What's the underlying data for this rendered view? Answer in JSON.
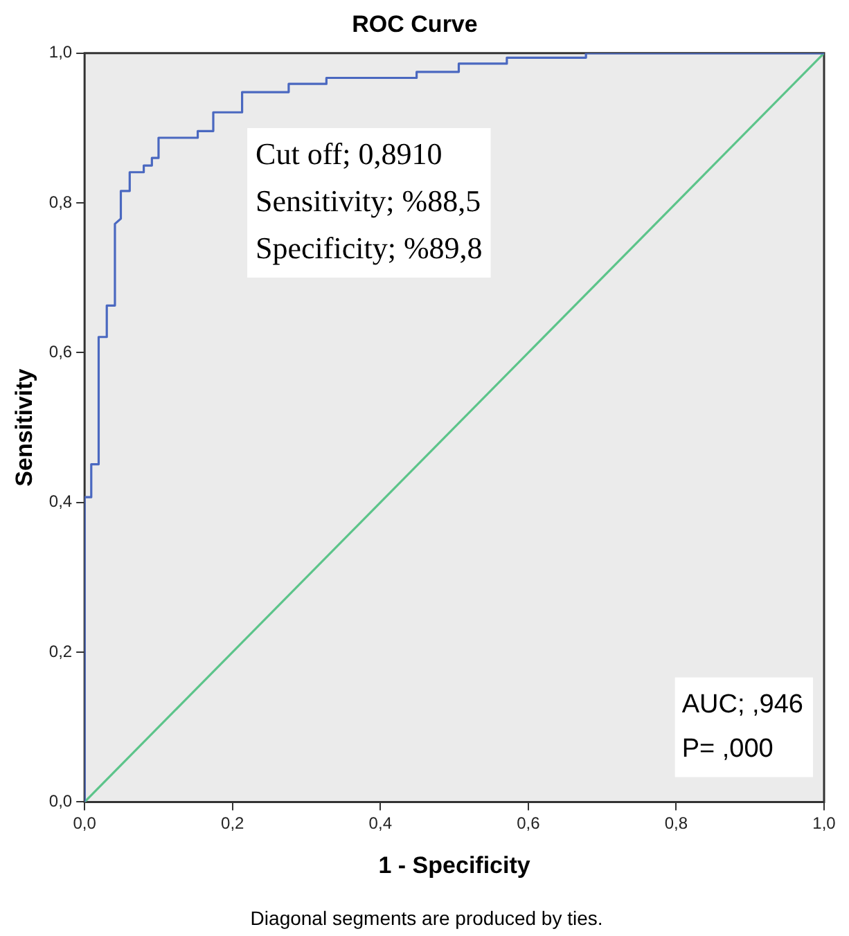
{
  "chart_data": {
    "type": "line",
    "title": "ROC Curve",
    "xlabel": "1 - Specificity",
    "ylabel": "Sensitivity",
    "xlim": [
      0,
      1
    ],
    "ylim": [
      0,
      1
    ],
    "xticks": [
      {
        "value": 0,
        "label": "0,0"
      },
      {
        "value": 0.2,
        "label": "0,2"
      },
      {
        "value": 0.4,
        "label": "0,4"
      },
      {
        "value": 0.6,
        "label": "0,6"
      },
      {
        "value": 0.8,
        "label": "0,8"
      },
      {
        "value": 1,
        "label": "1,0"
      }
    ],
    "yticks": [
      {
        "value": 0,
        "label": "0,0"
      },
      {
        "value": 0.2,
        "label": "0,2"
      },
      {
        "value": 0.4,
        "label": "0,4"
      },
      {
        "value": 0.6,
        "label": "0,6"
      },
      {
        "value": 0.8,
        "label": "0,8"
      },
      {
        "value": 1,
        "label": "1,0"
      }
    ],
    "grid": false,
    "legend": false,
    "marker": "none",
    "line_style": "solid",
    "series": [
      {
        "color": "#4a68c0",
        "x": [
          0,
          0,
          0.009,
          0.009,
          0.019,
          0.019,
          0.03,
          0.03,
          0.041,
          0.041,
          0.049,
          0.049,
          0.061,
          0.061,
          0.08,
          0.08,
          0.091,
          0.091,
          0.1,
          0.1,
          0.153,
          0.153,
          0.174,
          0.174,
          0.213,
          0.213,
          0.276,
          0.276,
          0.327,
          0.327,
          0.449,
          0.449,
          0.506,
          0.506,
          0.571,
          0.571,
          0.678,
          0.678,
          1
        ],
        "values": [
          0,
          0.407,
          0.407,
          0.451,
          0.451,
          0.621,
          0.621,
          0.663,
          0.663,
          0.772,
          0.779,
          0.816,
          0.816,
          0.841,
          0.841,
          0.85,
          0.85,
          0.86,
          0.86,
          0.887,
          0.887,
          0.896,
          0.896,
          0.921,
          0.921,
          0.948,
          0.948,
          0.959,
          0.959,
          0.967,
          0.967,
          0.975,
          0.975,
          0.986,
          0.986,
          0.994,
          0.994,
          1,
          1
        ]
      },
      {
        "color": "#5cc48a",
        "x": [
          0,
          1
        ],
        "values": [
          0,
          1
        ]
      }
    ],
    "annotations": [
      "Cut off; 0,8910",
      "Sensitivity; %88,5",
      "Specificity; %89,8",
      "AUC; ,946",
      "P= ,000",
      "Diagonal segments are produced by ties."
    ]
  }
}
